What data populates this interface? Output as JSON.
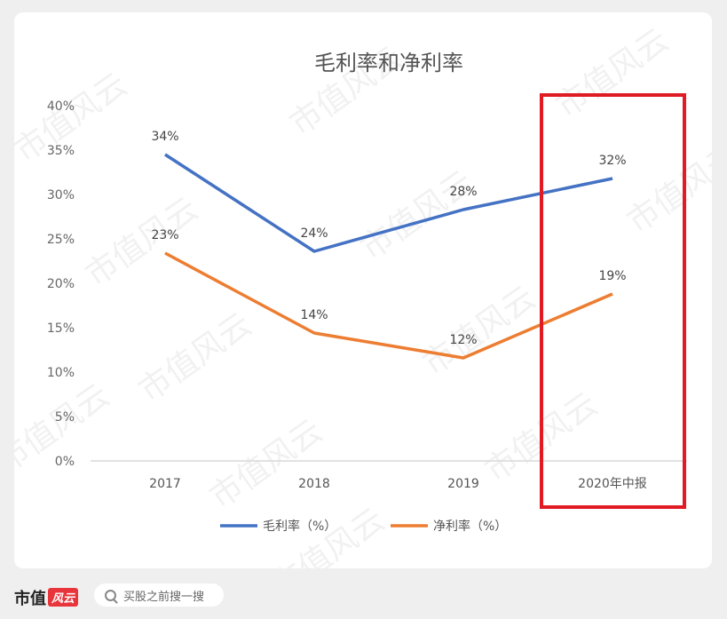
{
  "watermark": "市值风云",
  "chart_data": {
    "type": "line",
    "title": "毛利率和净利率",
    "categories": [
      "2017",
      "2018",
      "2019",
      "2020年中报"
    ],
    "ylim": [
      0,
      40
    ],
    "yticks": [
      "0%",
      "5%",
      "10%",
      "15%",
      "20%",
      "25%",
      "30%",
      "35%",
      "40%"
    ],
    "grid": false,
    "legend_position": "bottom",
    "highlight_category": "2020年中报",
    "highlight_color": "#e01b24",
    "series": [
      {
        "name": "毛利率（%）",
        "color": "#4472c4",
        "values": [
          34.5,
          23.6,
          28.3,
          31.8
        ],
        "labels": [
          "34%",
          "24%",
          "28%",
          "32%"
        ]
      },
      {
        "name": "净利率（%）",
        "color": "#ed7d31",
        "values": [
          23.4,
          14.4,
          11.6,
          18.8
        ],
        "labels": [
          "23%",
          "14%",
          "12%",
          "19%"
        ]
      }
    ]
  },
  "footer": {
    "brand": "市值",
    "brand_badge": "风云",
    "search_placeholder": "买股之前搜一搜"
  }
}
